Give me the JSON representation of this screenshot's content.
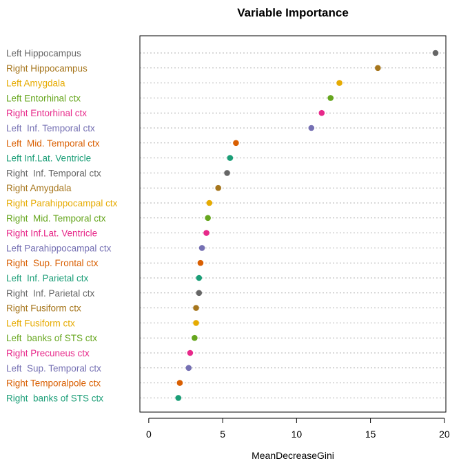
{
  "chart_data": {
    "type": "scatter",
    "title": "Variable Importance",
    "xlabel": "MeanDecreaseGini",
    "xlim": [
      -0.6,
      20.1
    ],
    "xticks": [
      0,
      5,
      10,
      15,
      20
    ],
    "grid": "horizontal dotted",
    "categories": [
      {
        "label": "Left Hippocampus",
        "value": 19.4,
        "color": "#666666"
      },
      {
        "label": "Right Hippocampus",
        "value": 15.5,
        "color": "#A6761D"
      },
      {
        "label": "Left Amygdala",
        "value": 12.9,
        "color": "#E6AB02"
      },
      {
        "label": "Left Entorhinal ctx",
        "value": 12.3,
        "color": "#66A61E"
      },
      {
        "label": "Right Entorhinal ctx",
        "value": 11.7,
        "color": "#E7298A"
      },
      {
        "label": "Left  Inf. Temporal ctx",
        "value": 11.0,
        "color": "#7570B3"
      },
      {
        "label": "Left  Mid. Temporal ctx",
        "value": 5.9,
        "color": "#D95F02"
      },
      {
        "label": "Left Inf.Lat. Ventricle",
        "value": 5.5,
        "color": "#1B9E77"
      },
      {
        "label": "Right  Inf. Temporal ctx",
        "value": 5.3,
        "color": "#666666"
      },
      {
        "label": "Right Amygdala",
        "value": 4.7,
        "color": "#A6761D"
      },
      {
        "label": "Right Parahippocampal ctx",
        "value": 4.1,
        "color": "#E6AB02"
      },
      {
        "label": "Right  Mid. Temporal ctx",
        "value": 4.0,
        "color": "#66A61E"
      },
      {
        "label": "Right Inf.Lat. Ventricle",
        "value": 3.9,
        "color": "#E7298A"
      },
      {
        "label": "Left Parahippocampal ctx",
        "value": 3.6,
        "color": "#7570B3"
      },
      {
        "label": "Right  Sup. Frontal ctx",
        "value": 3.5,
        "color": "#D95F02"
      },
      {
        "label": "Left  Inf. Parietal ctx",
        "value": 3.4,
        "color": "#1B9E77"
      },
      {
        "label": "Right  Inf. Parietal ctx",
        "value": 3.4,
        "color": "#666666"
      },
      {
        "label": "Right Fusiform ctx",
        "value": 3.2,
        "color": "#A6761D"
      },
      {
        "label": "Left Fusiform ctx",
        "value": 3.2,
        "color": "#E6AB02"
      },
      {
        "label": "Left  banks of STS ctx",
        "value": 3.1,
        "color": "#66A61E"
      },
      {
        "label": "Right Precuneus ctx",
        "value": 2.8,
        "color": "#E7298A"
      },
      {
        "label": "Left  Sup. Temporal ctx",
        "value": 2.7,
        "color": "#7570B3"
      },
      {
        "label": "Right Temporalpole ctx",
        "value": 2.1,
        "color": "#D95F02"
      },
      {
        "label": "Right  banks of STS ctx",
        "value": 2.0,
        "color": "#1B9E77"
      }
    ]
  }
}
